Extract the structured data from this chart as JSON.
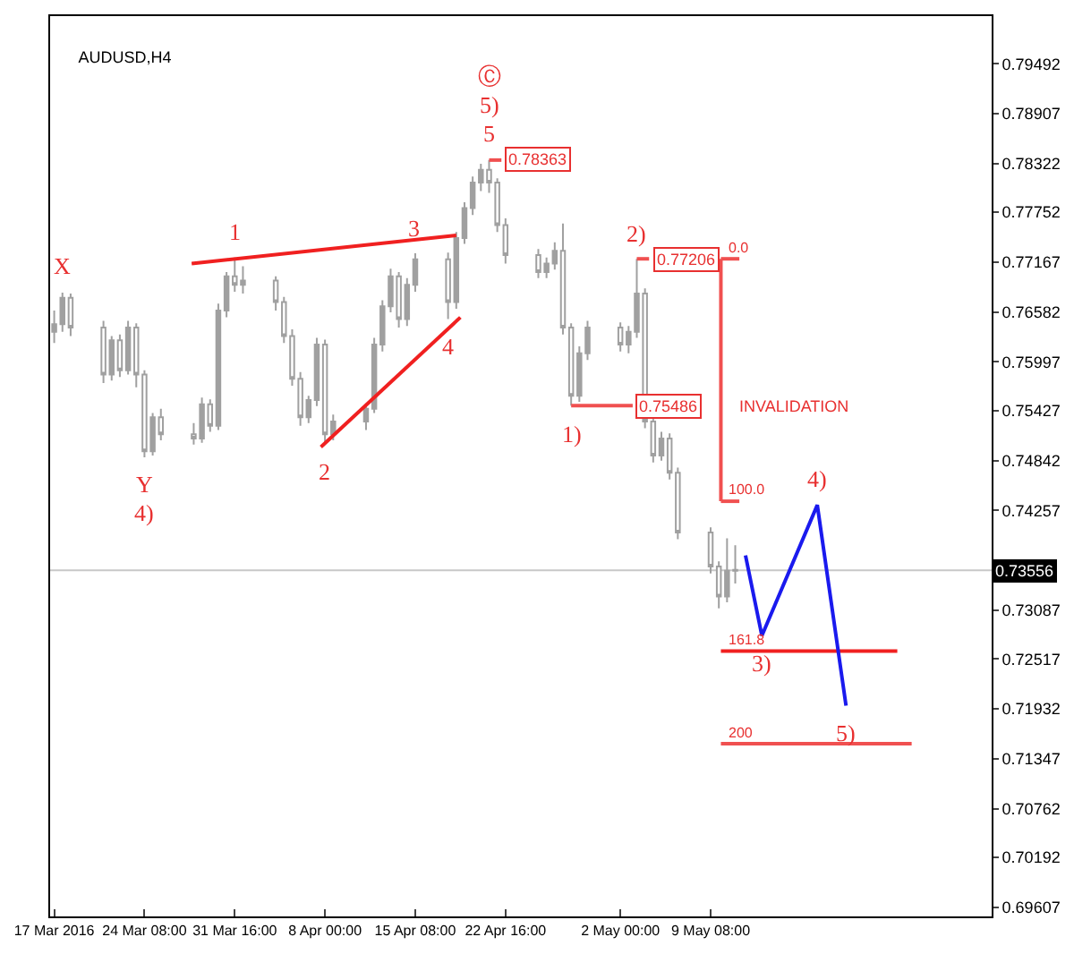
{
  "chart_data": {
    "type": "candlestick",
    "title": "AUDUSD,H4",
    "color": "#a0a0a0",
    "x": [
      "2016-03-17T00:00",
      "2016-03-17T16:00",
      "2016-03-18T08:00",
      "2016-03-21T00:00",
      "2016-03-21T16:00",
      "2016-03-22T08:00",
      "2016-03-23T00:00",
      "2016-03-23T16:00",
      "2016-03-24T08:00",
      "2016-03-25T00:00",
      "2016-03-25T16:00",
      "2016-03-28T08:00",
      "2016-03-29T00:00",
      "2016-03-29T16:00",
      "2016-03-30T08:00",
      "2016-03-31T00:00",
      "2016-03-31T16:00",
      "2016-04-01T08:00",
      "2016-04-04T00:00",
      "2016-04-04T16:00",
      "2016-04-05T08:00",
      "2016-04-06T00:00",
      "2016-04-06T16:00",
      "2016-04-07T08:00",
      "2016-04-08T00:00",
      "2016-04-08T16:00",
      "2016-04-11T08:00",
      "2016-04-12T00:00",
      "2016-04-12T16:00",
      "2016-04-13T08:00",
      "2016-04-14T00:00",
      "2016-04-14T16:00",
      "2016-04-15T08:00",
      "2016-04-18T00:00",
      "2016-04-18T16:00",
      "2016-04-19T08:00",
      "2016-04-20T00:00",
      "2016-04-20T16:00",
      "2016-04-21T08:00",
      "2016-04-22T00:00",
      "2016-04-22T16:00",
      "2016-04-25T08:00",
      "2016-04-26T00:00",
      "2016-04-26T16:00",
      "2016-04-27T08:00",
      "2016-04-28T00:00",
      "2016-04-28T16:00",
      "2016-04-29T08:00",
      "2016-05-02T00:00",
      "2016-05-02T16:00",
      "2016-05-03T08:00",
      "2016-05-04T00:00",
      "2016-05-04T16:00",
      "2016-05-05T08:00",
      "2016-05-06T00:00",
      "2016-05-06T16:00",
      "2016-05-09T08:00",
      "2016-05-10T00:00",
      "2016-05-10T16:00",
      "2016-05-11T08:00"
    ],
    "ohlc": [
      [
        0.7635,
        0.766,
        0.7622,
        0.7644
      ],
      [
        0.7644,
        0.7681,
        0.7635,
        0.7675
      ],
      [
        0.7675,
        0.768,
        0.763,
        0.764
      ],
      [
        0.764,
        0.7648,
        0.7575,
        0.7585
      ],
      [
        0.7585,
        0.763,
        0.7578,
        0.7625
      ],
      [
        0.7625,
        0.7632,
        0.7582,
        0.759
      ],
      [
        0.759,
        0.7648,
        0.7585,
        0.764
      ],
      [
        0.764,
        0.7645,
        0.757,
        0.7585
      ],
      [
        0.7585,
        0.759,
        0.7488,
        0.7495
      ],
      [
        0.7495,
        0.754,
        0.749,
        0.7535
      ],
      [
        0.7535,
        0.7545,
        0.7508,
        0.7515
      ],
      [
        0.7515,
        0.7528,
        0.7503,
        0.751
      ],
      [
        0.751,
        0.7558,
        0.7505,
        0.755
      ],
      [
        0.755,
        0.7556,
        0.7518,
        0.7525
      ],
      [
        0.7525,
        0.7668,
        0.752,
        0.766
      ],
      [
        0.766,
        0.7705,
        0.7652,
        0.77
      ],
      [
        0.77,
        0.7722,
        0.7682,
        0.769
      ],
      [
        0.769,
        0.7712,
        0.768,
        0.7695
      ],
      [
        0.7695,
        0.77,
        0.766,
        0.767
      ],
      [
        0.767,
        0.7676,
        0.7622,
        0.763
      ],
      [
        0.763,
        0.7638,
        0.7572,
        0.758
      ],
      [
        0.758,
        0.7588,
        0.7525,
        0.7535
      ],
      [
        0.7535,
        0.756,
        0.7528,
        0.7555
      ],
      [
        0.7555,
        0.7628,
        0.7548,
        0.762
      ],
      [
        0.762,
        0.7626,
        0.7504,
        0.7515
      ],
      [
        0.7515,
        0.7538,
        0.7508,
        0.753
      ],
      [
        0.753,
        0.755,
        0.752,
        0.7545
      ],
      [
        0.7545,
        0.7628,
        0.754,
        0.762
      ],
      [
        0.762,
        0.7672,
        0.7612,
        0.7665
      ],
      [
        0.7665,
        0.7709,
        0.7658,
        0.77
      ],
      [
        0.77,
        0.7705,
        0.764,
        0.765
      ],
      [
        0.765,
        0.7698,
        0.7642,
        0.769
      ],
      [
        0.769,
        0.7727,
        0.7682,
        0.772
      ],
      [
        0.772,
        0.7728,
        0.765,
        0.767
      ],
      [
        0.767,
        0.7752,
        0.7662,
        0.7745
      ],
      [
        0.7745,
        0.7787,
        0.7738,
        0.778
      ],
      [
        0.778,
        0.7817,
        0.7772,
        0.781
      ],
      [
        0.781,
        0.7832,
        0.78,
        0.7825
      ],
      [
        0.7825,
        0.78363,
        0.7798,
        0.781
      ],
      [
        0.781,
        0.7815,
        0.7752,
        0.776
      ],
      [
        0.776,
        0.7768,
        0.7715,
        0.7725
      ],
      [
        0.7725,
        0.7732,
        0.7698,
        0.7705
      ],
      [
        0.7705,
        0.7722,
        0.7698,
        0.7715
      ],
      [
        0.7715,
        0.774,
        0.7708,
        0.773
      ],
      [
        0.773,
        0.7762,
        0.7632,
        0.764
      ],
      [
        0.764,
        0.7645,
        0.75486,
        0.756
      ],
      [
        0.756,
        0.7618,
        0.7553,
        0.761
      ],
      [
        0.761,
        0.7648,
        0.7602,
        0.764
      ],
      [
        0.764,
        0.7646,
        0.7612,
        0.762
      ],
      [
        0.762,
        0.7642,
        0.761,
        0.7635
      ],
      [
        0.7635,
        0.77206,
        0.7628,
        0.768
      ],
      [
        0.768,
        0.7686,
        0.7522,
        0.753
      ],
      [
        0.753,
        0.7535,
        0.7482,
        0.749
      ],
      [
        0.749,
        0.7518,
        0.7484,
        0.751
      ],
      [
        0.751,
        0.7516,
        0.7462,
        0.747
      ],
      [
        0.747,
        0.7476,
        0.7392,
        0.74
      ],
      [
        0.74,
        0.7406,
        0.7352,
        0.736
      ],
      [
        0.736,
        0.7366,
        0.7311,
        0.7325
      ],
      [
        0.7325,
        0.7393,
        0.7318,
        0.7355
      ],
      [
        0.7355,
        0.7385,
        0.734,
        0.7356
      ]
    ],
    "series": [
      {
        "type": "line",
        "color": "#f02020",
        "x": [
          "2016-03-28T04:00",
          "2016-04-18T16:00"
        ],
        "values": [
          0.7715,
          0.7748
        ]
      },
      {
        "type": "line",
        "color": "#f02020",
        "x": [
          "2016-04-07T16:00",
          "2016-04-19T00:00"
        ],
        "values": [
          0.75,
          0.7652
        ]
      },
      {
        "type": "line",
        "color": "#f05050",
        "x": [
          "2016-04-21T08:00",
          "2016-04-22T08:00"
        ],
        "values": [
          0.78363,
          0.78363
        ]
      },
      {
        "type": "line",
        "color": "#f05050",
        "x": [
          "2016-05-03T08:00",
          "2016-05-04T08:00"
        ],
        "values": [
          0.77206,
          0.77206
        ]
      },
      {
        "type": "line",
        "color": "#f05050",
        "x": [
          "2016-04-28T00:00",
          "2016-05-03T00:00"
        ],
        "values": [
          0.75486,
          0.75486
        ]
      },
      {
        "type": "line",
        "color": "#f05050",
        "x": [
          "2016-05-10T04:00",
          "2016-05-11T16:00"
        ],
        "values": [
          0.77206,
          0.77206
        ]
      },
      {
        "type": "line",
        "color": "#f05050",
        "x": [
          "2016-05-10T04:00",
          "2016-05-11T16:00"
        ],
        "values": [
          0.74365,
          0.74365
        ]
      },
      {
        "type": "line",
        "color": "#f02020",
        "x": [
          "2016-05-10T04:00",
          "2016-05-24T12:00"
        ],
        "values": [
          0.72609,
          0.72609
        ]
      },
      {
        "type": "line",
        "color": "#f05050",
        "x": [
          "2016-05-10T04:00",
          "2016-05-25T16:00"
        ],
        "values": [
          0.71524,
          0.71524
        ]
      },
      {
        "type": "line",
        "color": "#1a1aee",
        "x": [
          "2016-05-12T04:00",
          "2016-05-13T12:00",
          "2016-05-18T00:00",
          "2016-05-20T08:00"
        ],
        "values": [
          0.7373,
          0.7279,
          0.7432,
          0.7197
        ]
      }
    ],
    "xlim": [
      "2016-03-16T16:00",
      "2016-06-01T04:00"
    ],
    "xticks": [
      {
        "value": "2016-03-17T00:00",
        "label": "17 Mar 2016"
      },
      {
        "value": "2016-03-24T08:00",
        "label": "24 Mar 08:00"
      },
      {
        "value": "2016-03-31T16:00",
        "label": "31 Mar 16:00"
      },
      {
        "value": "2016-04-08T00:00",
        "label": "8 Apr 00:00"
      },
      {
        "value": "2016-04-15T08:00",
        "label": "15 Apr 08:00"
      },
      {
        "value": "2016-04-22T16:00",
        "label": "22 Apr 16:00"
      },
      {
        "value": "2016-05-02T00:00",
        "label": "2 May 00:00"
      },
      {
        "value": "2016-05-09T08:00",
        "label": "9 May 08:00"
      }
    ],
    "ylim": [
      0.695,
      0.8005
    ],
    "yticks": [
      0.79492,
      0.78907,
      0.78322,
      0.77752,
      0.77167,
      0.76582,
      0.75997,
      0.75427,
      0.74842,
      0.74257,
      {
        "value": 0.73672,
        "label": null
      },
      0.73087,
      0.72517,
      0.71932,
      0.71347,
      0.70762,
      0.70192,
      0.69607
    ],
    "ref_lines": [
      {
        "axis": "y",
        "value": 0.73556,
        "label": "0.73556",
        "color": "#c8c8c8"
      }
    ],
    "annotations": [
      {
        "text": "X",
        "x": "2016-03-17T16:00",
        "y": 0.7681
      },
      {
        "text": "Y",
        "x": "2016-03-24T08:00",
        "y": 0.7488
      },
      {
        "text": "4)",
        "x": "2016-03-24T08:00",
        "y": 0.7488
      },
      {
        "text": "1",
        "x": "2016-03-31T16:00",
        "y": 0.7722
      },
      {
        "text": "2",
        "x": "2016-04-08T00:00",
        "y": 0.7504
      },
      {
        "text": "3",
        "x": "2016-04-15T08:00",
        "y": 0.7727
      },
      {
        "text": "4",
        "x": "2016-04-18T00:00",
        "y": 0.765
      },
      {
        "text": "5",
        "x": "2016-04-21T08:00",
        "y": 0.78363
      },
      {
        "text": "5)",
        "x": "2016-04-21T08:00",
        "y": 0.78363
      },
      "Ⓒ",
      {
        "text": "1)",
        "x": "2016-04-28T00:00",
        "y": 0.75486
      },
      {
        "text": "2)",
        "x": "2016-05-03T08:00",
        "y": 0.77206
      },
      {
        "text": "3)",
        "x": "2016-05-13T12:00",
        "y": 0.7279
      },
      {
        "text": "4)",
        "x": "2016-05-18T00:00",
        "y": 0.7432
      },
      {
        "text": "5)",
        "x": "2016-05-20T08:00",
        "y": 0.7197
      },
      {
        "text": "0.78363",
        "x": "2016-04-22T08:00",
        "y": 0.78363
      },
      {
        "text": "0.77206",
        "x": "2016-05-04T08:00",
        "y": 0.77206
      },
      {
        "text": "0.75486",
        "x": "2016-05-03T00:00",
        "y": 0.75486
      },
      "INVALIDATION",
      {
        "text": "0.0",
        "x": "2016-05-10T04:00",
        "y": 0.77206
      },
      {
        "text": "100.0",
        "x": "2016-05-10T04:00",
        "y": 0.74365
      },
      {
        "text": "161.8",
        "x": "2016-05-10T04:00",
        "y": 0.72609
      },
      {
        "text": "200",
        "x": "2016-05-10T04:00",
        "y": 0.71524
      }
    ]
  }
}
